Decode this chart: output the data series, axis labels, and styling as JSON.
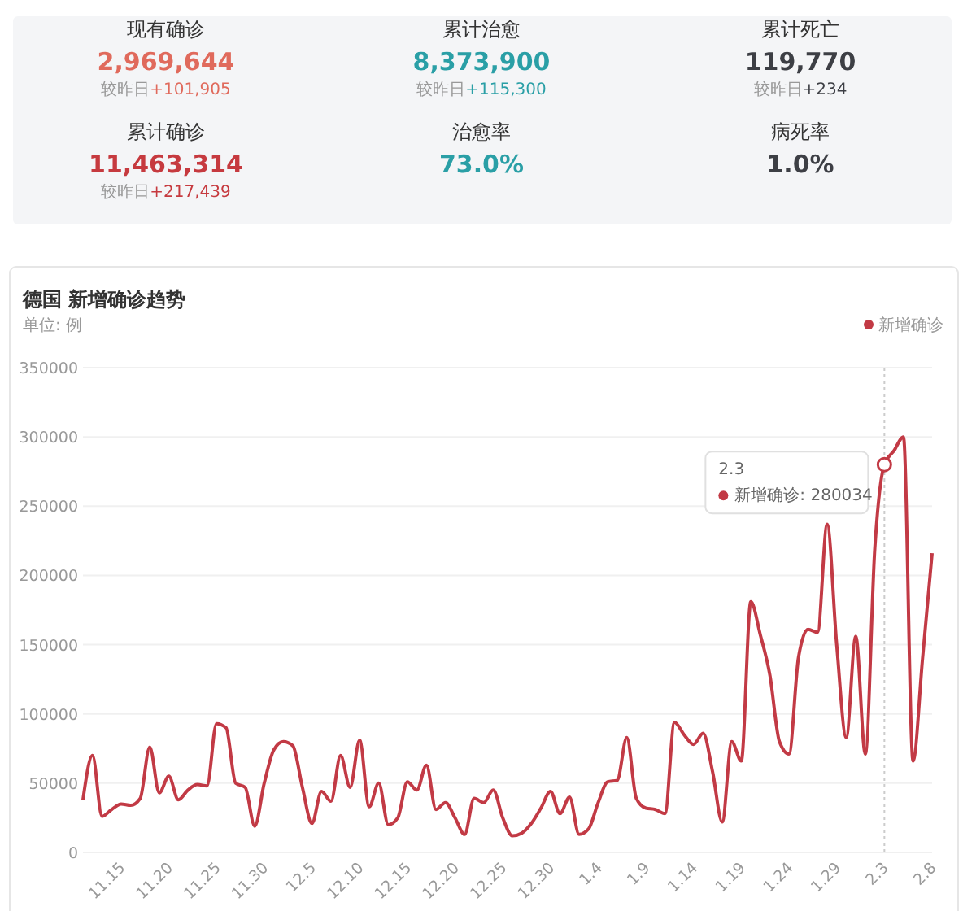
{
  "chart_data": [
    {
      "type": "other",
      "categories": [
        "现有确诊",
        "累计治愈",
        "累计死亡",
        "累计确诊",
        "治愈率",
        "病死率"
      ],
      "value_labels": [
        "2,969,644",
        "8,373,900",
        "119,770",
        "11,463,314",
        "73.0%",
        "1.0%"
      ],
      "annotations": [
        {
          "text": "较昨日+101,905",
          "x": "现有确诊"
        },
        {
          "text": "较昨日+115,300",
          "x": "累计治愈"
        },
        {
          "text": "较昨日+234",
          "x": "累计死亡"
        },
        {
          "text": "较昨日+217,439",
          "x": "累计确诊"
        }
      ]
    },
    {
      "type": "line",
      "title": "德国 新增确诊趋势",
      "subtitle": "单位: 例",
      "categories": [
        null,
        null,
        null,
        null,
        "11.15",
        null,
        null,
        null,
        null,
        "11.20",
        null,
        null,
        null,
        null,
        "11.25",
        null,
        null,
        null,
        null,
        "11.30",
        null,
        null,
        null,
        null,
        "12.5",
        null,
        null,
        null,
        null,
        "12.10",
        null,
        null,
        null,
        null,
        "12.15",
        null,
        null,
        null,
        null,
        "12.20",
        null,
        null,
        null,
        null,
        "12.25",
        null,
        null,
        null,
        null,
        "12.30",
        null,
        null,
        null,
        null,
        "1.4",
        null,
        null,
        null,
        null,
        "1.9",
        null,
        null,
        null,
        null,
        "1.14",
        null,
        null,
        null,
        null,
        "1.19",
        null,
        null,
        null,
        null,
        "1.24",
        null,
        null,
        null,
        null,
        "1.29",
        null,
        null,
        null,
        null,
        "2.3",
        null,
        null,
        null,
        null,
        "2.8"
      ],
      "series": [
        {
          "name": "新增确诊",
          "color": "#c23a45",
          "values": [
            38000,
            70000,
            26000,
            31000,
            35000,
            34000,
            39000,
            76000,
            43000,
            55000,
            38000,
            45000,
            49000,
            48000,
            93000,
            90000,
            50000,
            47000,
            19000,
            50000,
            74000,
            80000,
            77000,
            47000,
            21000,
            44000,
            37000,
            70000,
            47000,
            81000,
            33000,
            50000,
            20000,
            25000,
            51000,
            45000,
            63000,
            31000,
            36000,
            25000,
            13000,
            39000,
            36000,
            45000,
            25000,
            12000,
            14000,
            21000,
            32000,
            44000,
            28000,
            40000,
            13000,
            17000,
            36000,
            51000,
            52000,
            83000,
            39000,
            32000,
            31000,
            28000,
            94000,
            85000,
            78000,
            86000,
            58000,
            22000,
            80000,
            66000,
            181000,
            157000,
            128000,
            80000,
            71000,
            141000,
            161000,
            159000,
            237000,
            150000,
            83000,
            156000,
            71000,
            220000,
            280034,
            290000,
            300000,
            66000,
            140000,
            216000
          ]
        }
      ],
      "ylim": [
        0,
        350000
      ],
      "yticks": [
        0,
        50000,
        100000,
        150000,
        200000,
        250000,
        300000,
        350000
      ],
      "grid": "y",
      "legend": "top right",
      "marker": "none",
      "annotations": [
        {
          "text": "新增确诊: 280034",
          "x": "2.3",
          "y": 280034
        }
      ]
    }
  ]
}
